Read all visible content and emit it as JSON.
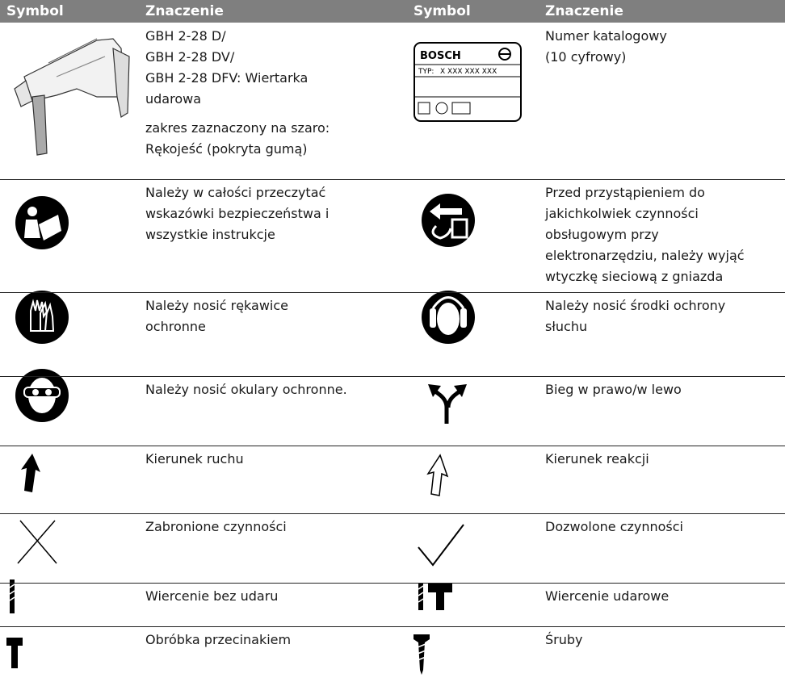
{
  "table": {
    "header": [
      "Symbol",
      "Znaczenie",
      "Symbol",
      "Znaczenie"
    ],
    "nameplate": {
      "brand": "BOSCH",
      "type_label": "TYP:",
      "number": "X XXX XXX XXX"
    },
    "rows": [
      {
        "left": [
          [
            "GBH 2-28 D/",
            "GBH 2-28 DV/",
            "GBH 2-28 DFV: Wiertarka",
            "udarowa"
          ],
          [
            "zakres zaznaczony na szaro:",
            "Rękojeść (pokryta gumą)"
          ]
        ],
        "right": [
          [
            "Numer katalogowy",
            "(10 cyfrowy)"
          ]
        ]
      },
      {
        "left": [
          [
            "Należy w całości przeczytać",
            "wskazówki bezpieczeństwa i",
            "wszystkie instrukcje"
          ]
        ],
        "right": [
          [
            "Przed przystąpieniem do",
            "jakichkolwiek czynności",
            "obsługowym przy",
            "elektronarzędziu, należy wyjąć",
            "wtyczkę sieciową z gniazda"
          ]
        ]
      },
      {
        "left": [
          [
            "Należy nosić rękawice",
            "ochronne"
          ]
        ],
        "right": [
          [
            "Należy nosić środki ochrony",
            "słuchu"
          ]
        ]
      },
      {
        "left": [
          [
            "Należy nosić okulary ochronne."
          ]
        ],
        "right": [
          [
            "Bieg w prawo/w lewo"
          ]
        ]
      },
      {
        "left": [
          [
            "Kierunek ruchu"
          ]
        ],
        "right": [
          [
            "Kierunek reakcji"
          ]
        ]
      },
      {
        "left": [
          [
            "Zabronione czynności"
          ]
        ],
        "right": [
          [
            "Dozwolone czynności"
          ]
        ]
      },
      {
        "left": [
          [
            "Wiercenie bez udaru"
          ]
        ],
        "right": [
          [
            "Wiercenie udarowe"
          ]
        ]
      },
      {
        "left": [
          [
            "Obróbka przecinakiem"
          ]
        ],
        "right": [
          [
            "Śruby"
          ]
        ]
      }
    ]
  }
}
